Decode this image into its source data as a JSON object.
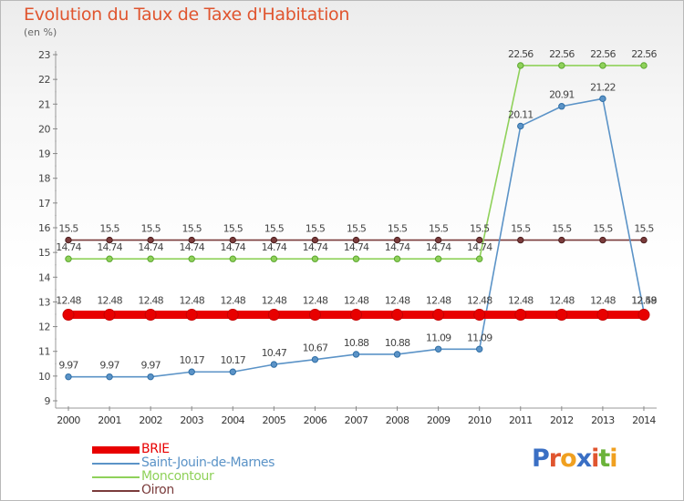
{
  "title": "Evolution du Taux de Taxe d'Habitation",
  "unit_label": "(en %)",
  "logo_text": "Proxiti",
  "chart_data": {
    "type": "line",
    "categories": [
      "2000",
      "2001",
      "2002",
      "2003",
      "2004",
      "2005",
      "2006",
      "2007",
      "2008",
      "2009",
      "2010",
      "2011",
      "2012",
      "2013",
      "2014"
    ],
    "ylim": [
      9,
      23
    ],
    "yticks": [
      9,
      10,
      11,
      12,
      13,
      14,
      15,
      16,
      17,
      18,
      19,
      20,
      21,
      22,
      23
    ],
    "grid": false,
    "series": [
      {
        "name": "BRIE",
        "color": "#e80000",
        "values": [
          12.48,
          12.48,
          12.48,
          12.48,
          12.48,
          12.48,
          12.48,
          12.48,
          12.48,
          12.48,
          12.48,
          12.48,
          12.48,
          12.48,
          12.48
        ],
        "labels": [
          "12.48",
          "12.48",
          "12.48",
          "12.48",
          "12.48",
          "12.48",
          "12.48",
          "12.48",
          "12.48",
          "12.48",
          "12.48",
          "12.48",
          "12.48",
          "12.48",
          "12.48"
        ]
      },
      {
        "name": "Saint-Jouin-de-Marnes",
        "color": "#5b93c7",
        "values": [
          9.97,
          9.97,
          9.97,
          10.17,
          10.17,
          10.47,
          10.67,
          10.88,
          10.88,
          11.09,
          11.09,
          20.11,
          20.91,
          21.22,
          12.59
        ],
        "labels": [
          "9.97",
          "9.97",
          "9.97",
          "10.17",
          "10.17",
          "10.47",
          "10.67",
          "10.88",
          "10.88",
          "11.09",
          "11.09",
          "20.11",
          "20.91",
          "21.22",
          "12.59"
        ]
      },
      {
        "name": "Moncontour",
        "color": "#8fd15a",
        "values": [
          14.74,
          14.74,
          14.74,
          14.74,
          14.74,
          14.74,
          14.74,
          14.74,
          14.74,
          14.74,
          14.74,
          22.56,
          22.56,
          22.56,
          22.56
        ],
        "labels": [
          "14.74",
          "14.74",
          "14.74",
          "14.74",
          "14.74",
          "14.74",
          "14.74",
          "14.74",
          "14.74",
          "14.74",
          "14.74",
          "22.56",
          "22.56",
          "22.56",
          "22.56"
        ]
      },
      {
        "name": "Oiron",
        "color": "#7a3b3b",
        "values": [
          15.5,
          15.5,
          15.5,
          15.5,
          15.5,
          15.5,
          15.5,
          15.5,
          15.5,
          15.5,
          15.5,
          15.5,
          15.5,
          15.5,
          15.5
        ],
        "labels": [
          "15.5",
          "15.5",
          "15.5",
          "15.5",
          "15.5",
          "15.5",
          "15.5",
          "15.5",
          "15.5",
          "15.5",
          "15.5",
          "15.5",
          "15.5",
          "15.5",
          "15.5"
        ]
      }
    ]
  },
  "legend": [
    {
      "label": "BRIE",
      "color": "#e80000"
    },
    {
      "label": "Saint-Jouin-de-Marnes",
      "color": "#5b93c7"
    },
    {
      "label": "Moncontour",
      "color": "#8fd15a"
    },
    {
      "label": "Oiron",
      "color": "#7a3b3b"
    }
  ]
}
